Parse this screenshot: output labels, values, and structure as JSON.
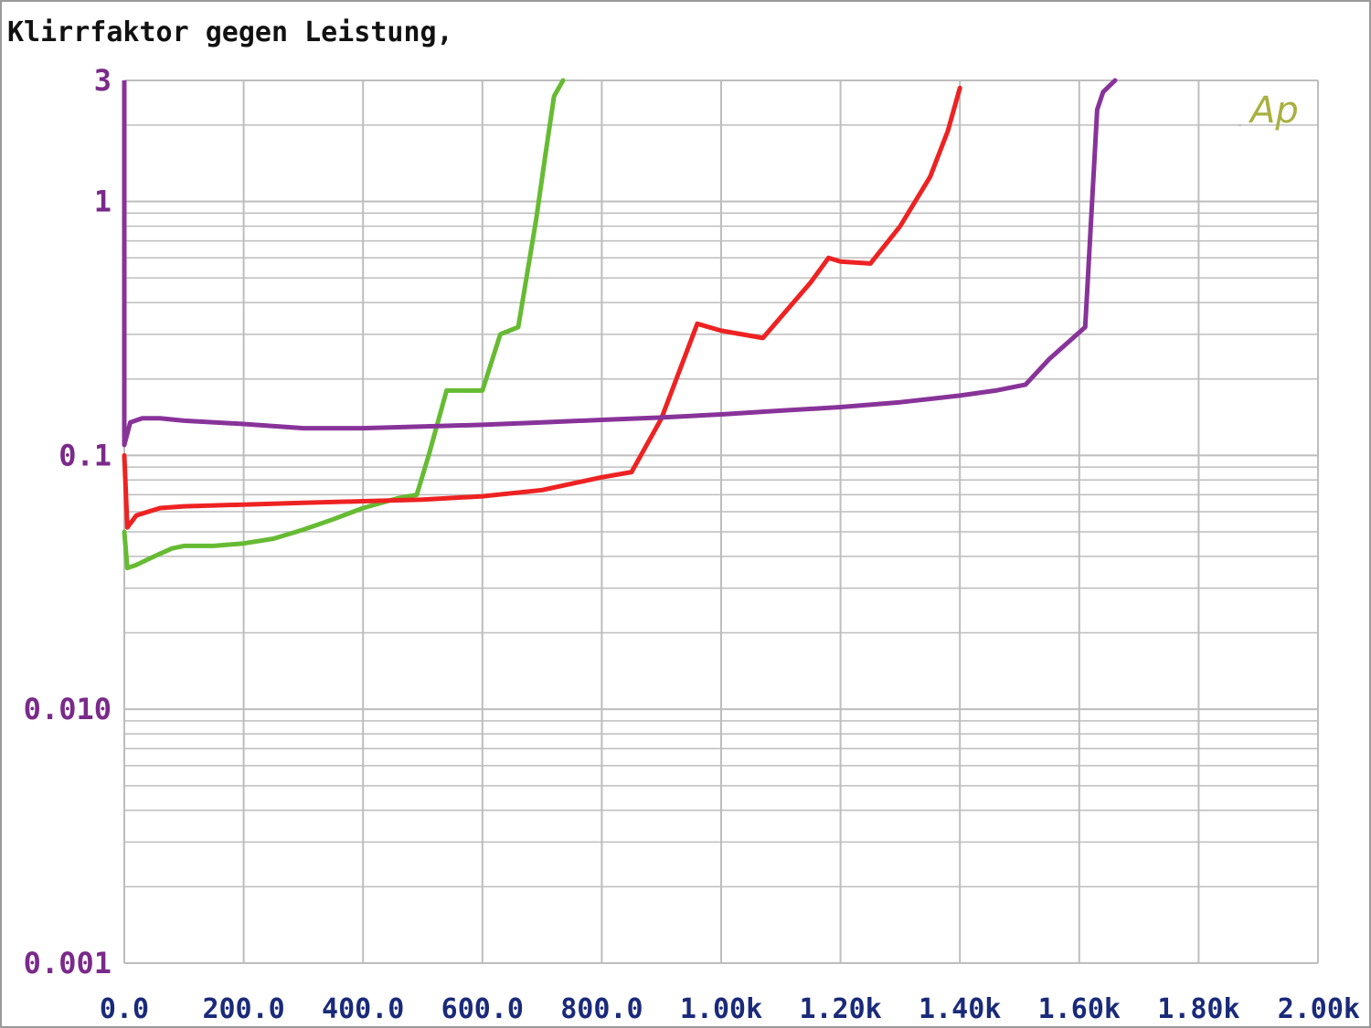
{
  "window": {
    "title": "Klirrfaktor gegen Leistung,"
  },
  "chart_data": {
    "type": "line",
    "title": "Klirrfaktor gegen Leistung,",
    "xlabel": "",
    "ylabel": "",
    "xlim": [
      0,
      2000
    ],
    "ylim": [
      0.001,
      3
    ],
    "yscale": "log",
    "grid": true,
    "x_ticks": [
      {
        "value": 0,
        "label": "0.0"
      },
      {
        "value": 200,
        "label": "200.0"
      },
      {
        "value": 400,
        "label": "400.0"
      },
      {
        "value": 600,
        "label": "600.0"
      },
      {
        "value": 800,
        "label": "800.0"
      },
      {
        "value": 1000,
        "label": "1.00k"
      },
      {
        "value": 1200,
        "label": "1.20k"
      },
      {
        "value": 1400,
        "label": "1.40k"
      },
      {
        "value": 1600,
        "label": "1.60k"
      },
      {
        "value": 1800,
        "label": "1.80k"
      },
      {
        "value": 2000,
        "label": "2.00k"
      }
    ],
    "y_ticks": [
      {
        "value": 3,
        "label": "3"
      },
      {
        "value": 1,
        "label": "1"
      },
      {
        "value": 0.1,
        "label": "0.1"
      },
      {
        "value": 0.01,
        "label": "0.010"
      },
      {
        "value": 0.001,
        "label": "0.001"
      }
    ],
    "watermark": "Ap",
    "colors": {
      "green": "#66bb33",
      "red": "#ee2222",
      "purple": "#883399",
      "axis_label_y": "#7a2a8a",
      "axis_label_x": "#1a2a7a",
      "grid": "#bdbdbd",
      "watermark": "#a8b040"
    },
    "series": [
      {
        "color": "#66bb33",
        "x": [
          0,
          5,
          20,
          40,
          60,
          80,
          100,
          150,
          200,
          250,
          300,
          350,
          400,
          460,
          490,
          510,
          540,
          560,
          600,
          630,
          660,
          690,
          705,
          720,
          735
        ],
        "y": [
          0.05,
          0.036,
          0.037,
          0.039,
          0.041,
          0.043,
          0.044,
          0.044,
          0.045,
          0.047,
          0.051,
          0.056,
          0.062,
          0.068,
          0.07,
          0.1,
          0.18,
          0.18,
          0.18,
          0.3,
          0.32,
          0.85,
          1.5,
          2.6,
          3.0
        ]
      },
      {
        "color": "#ee2222",
        "x": [
          0,
          5,
          20,
          40,
          60,
          100,
          200,
          300,
          400,
          500,
          600,
          700,
          800,
          850,
          900,
          960,
          1000,
          1070,
          1150,
          1180,
          1200,
          1250,
          1300,
          1350,
          1380,
          1400
        ],
        "y": [
          0.1,
          0.052,
          0.058,
          0.06,
          0.062,
          0.063,
          0.064,
          0.065,
          0.066,
          0.067,
          0.069,
          0.073,
          0.082,
          0.086,
          0.14,
          0.33,
          0.31,
          0.29,
          0.48,
          0.6,
          0.58,
          0.57,
          0.8,
          1.25,
          1.9,
          2.8
        ]
      },
      {
        "color": "#883399",
        "x": [
          0,
          10,
          30,
          60,
          100,
          200,
          300,
          400,
          500,
          600,
          700,
          800,
          900,
          1000,
          1100,
          1200,
          1300,
          1400,
          1460,
          1510,
          1550,
          1610,
          1630,
          1640,
          1660
        ],
        "y": [
          0.11,
          0.135,
          0.14,
          0.14,
          0.137,
          0.133,
          0.128,
          0.128,
          0.13,
          0.132,
          0.135,
          0.138,
          0.141,
          0.145,
          0.15,
          0.155,
          0.162,
          0.172,
          0.18,
          0.19,
          0.24,
          0.32,
          2.3,
          2.7,
          3.0
        ]
      }
    ]
  }
}
